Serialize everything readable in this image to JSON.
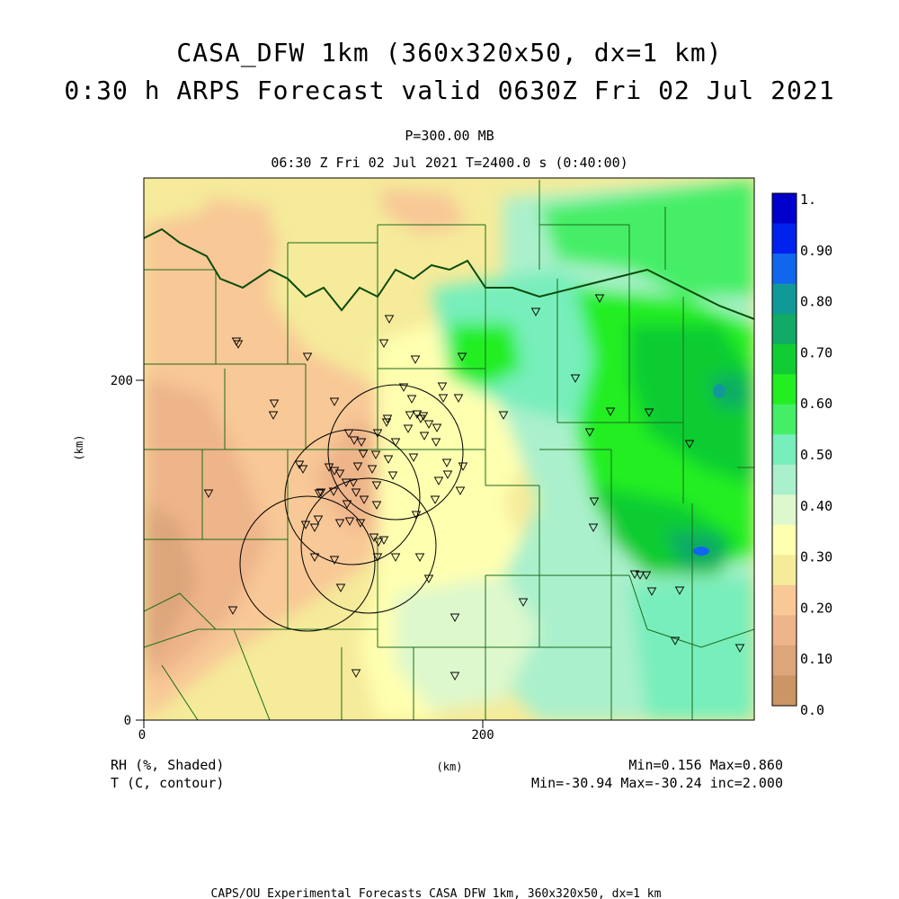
{
  "header": {
    "title_line1": "CASA_DFW 1km (360x320x50, dx=1 km)",
    "title_line2": "0:30 h ARPS Forecast valid 0630Z Fri 02 Jul 2021",
    "level": "P=300.00 MB",
    "time_line": "06:30 Z Fri 02 Jul 2021    T=2400.0 s (0:40:00)"
  },
  "axes": {
    "x_ticks": [
      "0",
      "200"
    ],
    "y_ticks": [
      "0",
      "200"
    ],
    "x_unit": "(km)",
    "y_unit": "(km)"
  },
  "colorbar": {
    "labels": [
      "1.",
      "0.90",
      "0.80",
      "0.70",
      "0.60",
      "0.50",
      "0.40",
      "0.30",
      "0.20",
      "0.10",
      "0.0"
    ],
    "colors": [
      "#0000cc",
      "#0022ee",
      "#1166ee",
      "#119999",
      "#11aa66",
      "#11cc33",
      "#22ee22",
      "#44ee66",
      "#77eebb",
      "#aaf0cc",
      "#ddf8cc",
      "#ffffb0",
      "#f5eb9a",
      "#f8c896",
      "#eeb48a",
      "#dda57a",
      "#cc9566"
    ]
  },
  "footer": {
    "rh_label": "RH (%, Shaded)",
    "t_label": "T (C, contour)",
    "rh_stats": "Min=0.156 Max=0.860",
    "t_stats": "Min=-30.94 Max=-30.24 inc=2.000",
    "credit": "CAPS/OU Experimental Forecasts  CASA DFW 1km, 360x320x50, dx=1 km"
  },
  "map_features": {
    "radar_rings": 4,
    "station_markers": "inverted-triangle"
  }
}
